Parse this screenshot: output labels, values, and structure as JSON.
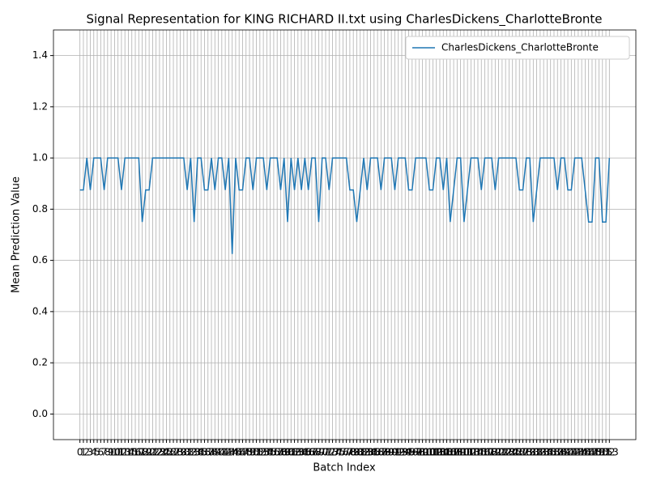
{
  "chart_data": {
    "type": "line",
    "title": "Signal Representation for KING RICHARD II.txt using CharlesDickens_CharlotteBronte",
    "x_label": "Batch Index",
    "y_label": "Mean Prediction Value",
    "categories": [
      0,
      1,
      2,
      3,
      4,
      5,
      6,
      7,
      8,
      9,
      10,
      11,
      12,
      13,
      14,
      15,
      16,
      17,
      18,
      19,
      20,
      21,
      22,
      23,
      24,
      25,
      26,
      27,
      28,
      29,
      30,
      31,
      32,
      33,
      34,
      35,
      36,
      37,
      38,
      39,
      40,
      41,
      42,
      43,
      44,
      45,
      46,
      47,
      48,
      49,
      50,
      51,
      52,
      53,
      54,
      55,
      56,
      57,
      58,
      59,
      60,
      61,
      62,
      63,
      64,
      65,
      66,
      67,
      68,
      69,
      70,
      71,
      72,
      73,
      74,
      75,
      76,
      77,
      78,
      79,
      80,
      81,
      82,
      83,
      84,
      85,
      86,
      87,
      88,
      89,
      90,
      91,
      92,
      93,
      94,
      95,
      96,
      97,
      98,
      99,
      100,
      101,
      102,
      103,
      104,
      105,
      106,
      107,
      108,
      109,
      110,
      111,
      112,
      113,
      114,
      115,
      116,
      117,
      118,
      119,
      120,
      121,
      122,
      123,
      124,
      125,
      126,
      127,
      128,
      129,
      130,
      131,
      132,
      133,
      134,
      135,
      136,
      137,
      138,
      139,
      140,
      141,
      142,
      143,
      144,
      145,
      146,
      147,
      148,
      149,
      150,
      151,
      152,
      153
    ],
    "series": [
      {
        "name": "CharlesDickens_CharlotteBronte",
        "color": "#1f77b4",
        "values": [
          0.875,
          0.875,
          1,
          0.875,
          1,
          1,
          1,
          0.875,
          1,
          1,
          1,
          1,
          0.875,
          1,
          1,
          1,
          1,
          1,
          0.75,
          0.875,
          0.875,
          1,
          1,
          1,
          1,
          1,
          1,
          1,
          1,
          1,
          1,
          0.875,
          1,
          0.75,
          1,
          1,
          0.875,
          0.875,
          1,
          0.875,
          1,
          1,
          0.875,
          1,
          0.625,
          1,
          0.875,
          0.875,
          1,
          1,
          0.875,
          1,
          1,
          1,
          0.875,
          1,
          1,
          1,
          0.875,
          1,
          0.75,
          1,
          0.875,
          1,
          0.875,
          1,
          0.875,
          1,
          1,
          0.75,
          1,
          1,
          0.875,
          1,
          1,
          1,
          1,
          1,
          0.875,
          0.875,
          0.75,
          0.875,
          1,
          0.875,
          1,
          1,
          1,
          0.875,
          1,
          1,
          1,
          0.875,
          1,
          1,
          1,
          0.875,
          0.875,
          1,
          1,
          1,
          1,
          0.875,
          0.875,
          1,
          1,
          0.875,
          1,
          0.75,
          0.875,
          1,
          1,
          0.75,
          0.875,
          1,
          1,
          1,
          0.875,
          1,
          1,
          1,
          0.875,
          1,
          1,
          1,
          1,
          1,
          1,
          0.875,
          0.875,
          1,
          1,
          0.75,
          0.875,
          1,
          1,
          1,
          1,
          1,
          0.875,
          1,
          1,
          0.875,
          0.875,
          1,
          1,
          1,
          0.875,
          0.75,
          0.75,
          1,
          1,
          0.75,
          0.75,
          1
        ]
      }
    ],
    "ylim": [
      -0.1,
      1.5
    ],
    "yticks": [
      {
        "value": 0,
        "label": "0.0"
      },
      0.2,
      0.4,
      0.6,
      0.8,
      {
        "value": 1,
        "label": "1.0"
      },
      1.2,
      1.4
    ],
    "grid": true,
    "legend": "upper right"
  }
}
